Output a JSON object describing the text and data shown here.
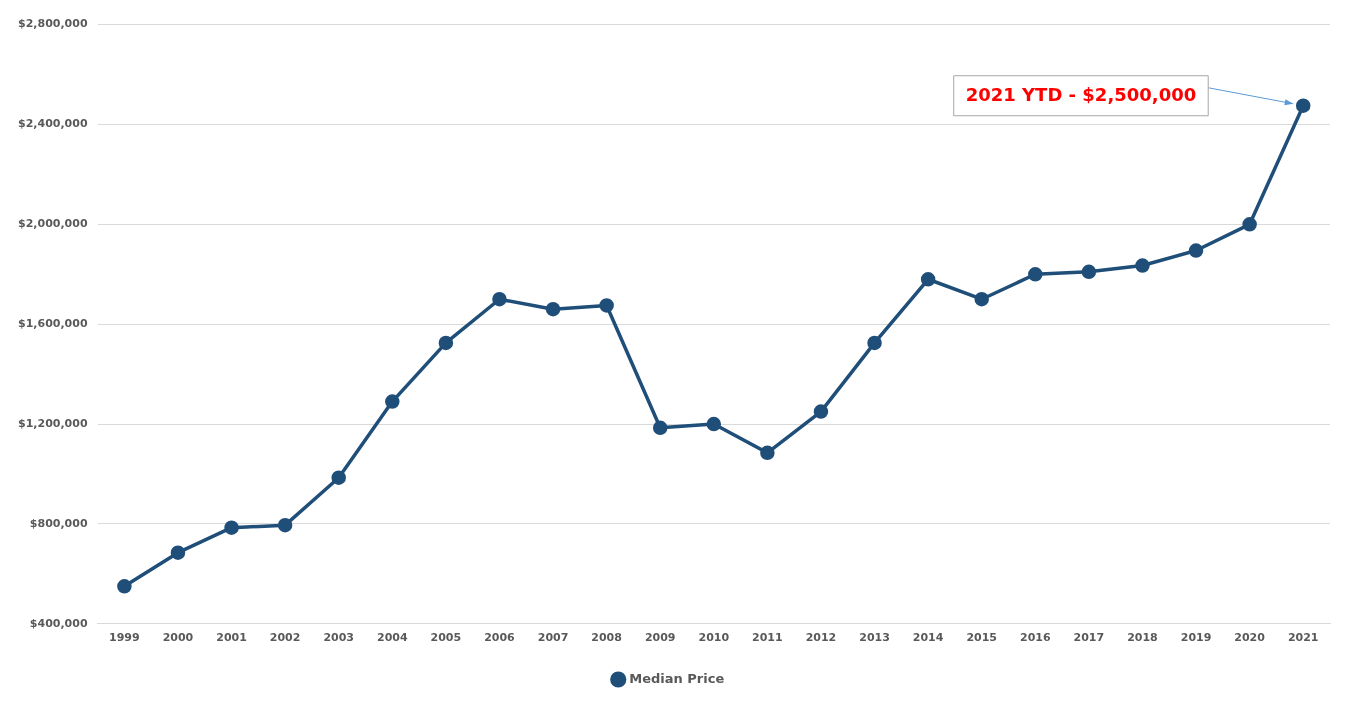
{
  "chart_data": {
    "type": "line",
    "categories": [
      "1999",
      "2000",
      "2001",
      "2002",
      "2003",
      "2004",
      "2005",
      "2006",
      "2007",
      "2008",
      "2009",
      "2010",
      "2011",
      "2012",
      "2013",
      "2014",
      "2015",
      "2016",
      "2017",
      "2018",
      "2019",
      "2020",
      "2021"
    ],
    "series": [
      {
        "name": "Median Price",
        "color": "#1f4e79",
        "values": [
          550000,
          685000,
          785000,
          795000,
          985000,
          1290000,
          1525000,
          1700000,
          1660000,
          1675000,
          1185000,
          1200000,
          1085000,
          1250000,
          1525000,
          1780000,
          1700000,
          1800000,
          1810000,
          1835000,
          1895000,
          2000000,
          2475000
        ]
      }
    ],
    "ylim": [
      400000,
      2800000
    ],
    "yticks": [
      {
        "value": 400000,
        "label": "$400,000"
      },
      {
        "value": 800000,
        "label": "$800,000"
      },
      {
        "value": 1200000,
        "label": "$1,200,000"
      },
      {
        "value": 1600000,
        "label": "$1,600,000"
      },
      {
        "value": 2000000,
        "label": "$2,000,000"
      },
      {
        "value": 2400000,
        "label": "$2,400,000"
      },
      {
        "value": 2800000,
        "label": "$2,800,000"
      }
    ],
    "grid": "y",
    "legend": "bottom",
    "marker": "circle",
    "line_style": "solid",
    "annotations": [
      "2021 YTD - $2,500,000"
    ]
  }
}
